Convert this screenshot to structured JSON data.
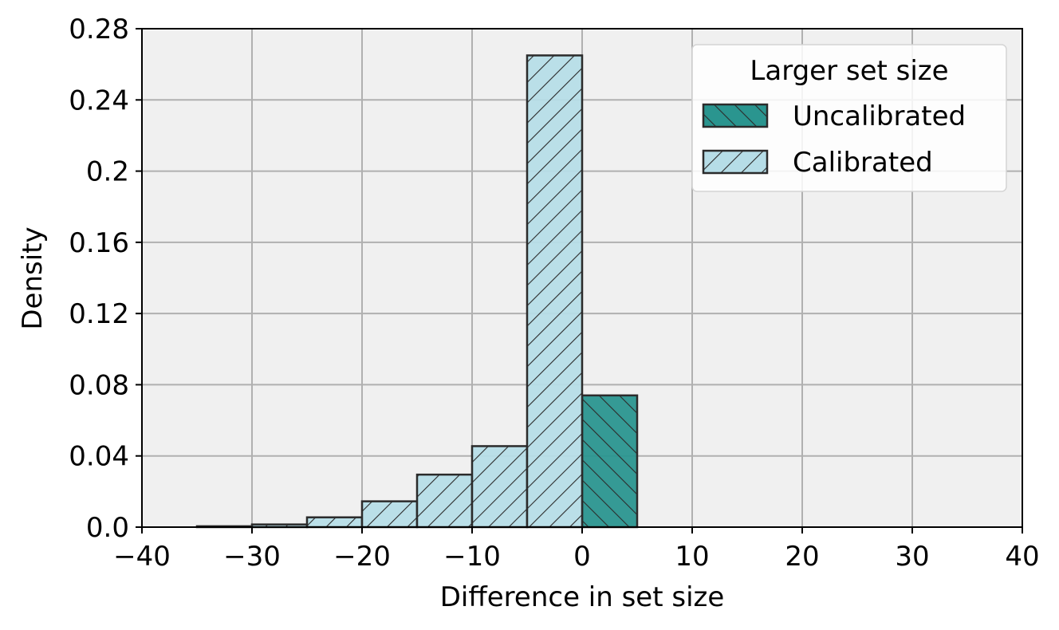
{
  "chart_data": {
    "type": "bar",
    "xlabel": "Difference in set size",
    "ylabel": "Density",
    "xlim": [
      -40,
      40
    ],
    "ylim": [
      0,
      0.28
    ],
    "xticks": [
      -40,
      -30,
      -20,
      -10,
      0,
      10,
      20,
      30,
      40
    ],
    "xtick_labels": [
      "−40",
      "−30",
      "−20",
      "−10",
      "0",
      "10",
      "20",
      "30",
      "40"
    ],
    "yticks": [
      0,
      0.04,
      0.08,
      0.12,
      0.16,
      0.2,
      0.24,
      0.28
    ],
    "ytick_labels": [
      "0.0",
      "0.04",
      "0.08",
      "0.12",
      "0.16",
      "0.2",
      "0.24",
      "0.28"
    ],
    "grid": true,
    "legend": {
      "title": "Larger set size",
      "placement": "top-right"
    },
    "series": [
      {
        "name": "Uncalibrated",
        "color": "#2a958f",
        "hatch": "backslash",
        "bins": [
          {
            "x0": 0,
            "x1": 5,
            "value": 0.074
          }
        ]
      },
      {
        "name": "Calibrated",
        "color": "#b6dde7",
        "hatch": "slash",
        "bins": [
          {
            "x0": -35,
            "x1": -30,
            "value": 0.0005
          },
          {
            "x0": -30,
            "x1": -25,
            "value": 0.0015
          },
          {
            "x0": -25,
            "x1": -20,
            "value": 0.0055
          },
          {
            "x0": -20,
            "x1": -15,
            "value": 0.0145
          },
          {
            "x0": -15,
            "x1": -10,
            "value": 0.0295
          },
          {
            "x0": -10,
            "x1": -5,
            "value": 0.0455
          },
          {
            "x0": -5,
            "x1": 0,
            "value": 0.265
          }
        ]
      }
    ]
  }
}
